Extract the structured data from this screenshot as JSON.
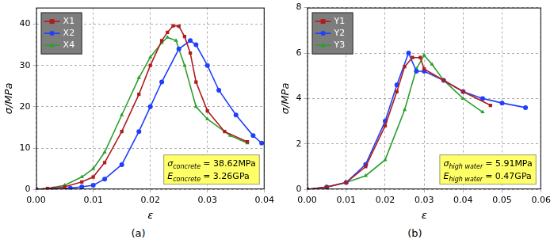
{
  "chart_data": [
    {
      "type": "line",
      "panel_label": "(a)",
      "x_label": "ε",
      "y_label": "σ/MPa",
      "xlim": [
        0,
        0.04
      ],
      "xticks": [
        {
          "value": 0,
          "label": "0.00"
        },
        {
          "value": 0.01,
          "label": "0.01"
        },
        {
          "value": 0.02,
          "label": "0.02"
        },
        {
          "value": 0.03,
          "label": "0.03"
        },
        {
          "value": 0.04,
          "label": "0.04"
        }
      ],
      "ylim": [
        0,
        44
      ],
      "yticks": [
        0,
        10,
        20,
        30,
        40
      ],
      "grid": true,
      "legend": "upper left",
      "series": [
        {
          "name": "X1",
          "color": "#b01c1c",
          "marker": "square",
          "x": [
            0,
            0.002,
            0.005,
            0.008,
            0.01,
            0.012,
            0.015,
            0.018,
            0.02,
            0.022,
            0.023,
            0.024,
            0.025,
            0.026,
            0.027,
            0.028,
            0.03,
            0.033,
            0.037
          ],
          "values": [
            0,
            0.2,
            0.6,
            1.8,
            3,
            6.5,
            14,
            23,
            30,
            36,
            38,
            39.6,
            39.5,
            37,
            33,
            26,
            19,
            14,
            11.5
          ]
        },
        {
          "name": "X2",
          "color": "#1f3fff",
          "marker": "circle",
          "x": [
            0,
            0.003,
            0.006,
            0.008,
            0.01,
            0.012,
            0.015,
            0.018,
            0.02,
            0.022,
            0.025,
            0.027,
            0.028,
            0.03,
            0.032,
            0.035,
            0.038,
            0.0395
          ],
          "values": [
            0,
            0.1,
            0.3,
            0.6,
            1,
            2.5,
            6,
            14,
            20,
            26,
            34,
            36,
            35,
            30,
            24,
            18,
            13,
            11.2
          ]
        },
        {
          "name": "X4",
          "color": "#2e9e2e",
          "marker": "triangle",
          "x": [
            0,
            0.002,
            0.005,
            0.008,
            0.01,
            0.012,
            0.015,
            0.018,
            0.02,
            0.022,
            0.023,
            0.0245,
            0.026,
            0.028,
            0.03,
            0.034,
            0.037
          ],
          "values": [
            0,
            0.2,
            1,
            3,
            5,
            9,
            18,
            27,
            32,
            35.5,
            36.8,
            36,
            30,
            20,
            17,
            13,
            11.2
          ]
        }
      ],
      "annotations": [
        {
          "symbol": "σ",
          "subscript": "concrete",
          "text": "= 38.62MPa"
        },
        {
          "symbol": "E",
          "subscript": "concrete",
          "text": "= 3.26GPa"
        }
      ]
    },
    {
      "type": "line",
      "panel_label": "(b)",
      "x_label": "ε",
      "y_label": "σ/MPa",
      "xlim": [
        0,
        0.06
      ],
      "xticks": [
        {
          "value": 0,
          "label": "0.00"
        },
        {
          "value": 0.01,
          "label": "0.01"
        },
        {
          "value": 0.02,
          "label": "0.02"
        },
        {
          "value": 0.03,
          "label": "0.03"
        },
        {
          "value": 0.04,
          "label": "0.04"
        },
        {
          "value": 0.05,
          "label": "0.05"
        },
        {
          "value": 0.06,
          "label": "0.06"
        }
      ],
      "ylim": [
        0,
        8
      ],
      "yticks": [
        0,
        2,
        4,
        6,
        8
      ],
      "grid": true,
      "legend": "upper left",
      "series": [
        {
          "name": "Y1",
          "color": "#b01c1c",
          "marker": "square",
          "x": [
            0,
            0.005,
            0.01,
            0.015,
            0.02,
            0.023,
            0.025,
            0.027,
            0.029,
            0.03,
            0.035,
            0.04,
            0.047
          ],
          "values": [
            0,
            0.1,
            0.3,
            1,
            2.8,
            4.3,
            5.4,
            5.8,
            5.8,
            5.3,
            4.8,
            4.3,
            3.7
          ]
        },
        {
          "name": "Y2",
          "color": "#1f3fff",
          "marker": "circle",
          "x": [
            0,
            0.005,
            0.01,
            0.015,
            0.02,
            0.023,
            0.026,
            0.028,
            0.03,
            0.035,
            0.04,
            0.045,
            0.05,
            0.056
          ],
          "values": [
            0,
            0.1,
            0.3,
            1.1,
            3,
            4.6,
            6,
            5.2,
            5.2,
            4.8,
            4.3,
            4,
            3.8,
            3.6
          ]
        },
        {
          "name": "Y3",
          "color": "#2e9e2e",
          "marker": "triangle",
          "x": [
            0,
            0.005,
            0.01,
            0.015,
            0.02,
            0.025,
            0.028,
            0.03,
            0.032,
            0.035,
            0.04,
            0.045
          ],
          "values": [
            0,
            0.1,
            0.3,
            0.6,
            1.3,
            3.5,
            5.3,
            5.9,
            5.5,
            4.8,
            4,
            3.4
          ]
        }
      ],
      "annotations": [
        {
          "symbol": "σ",
          "subscript": "high water",
          "text": "= 5.91MPa"
        },
        {
          "symbol": "E",
          "subscript": "high water",
          "text": "= 0.47GPa"
        }
      ]
    }
  ]
}
